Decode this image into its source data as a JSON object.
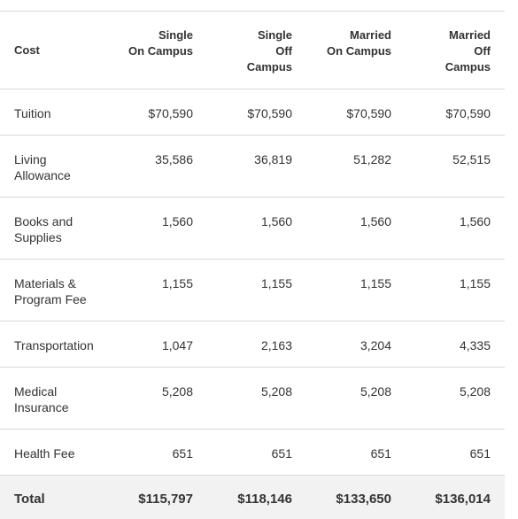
{
  "table": {
    "header": [
      "Cost",
      "Single\nOn Campus",
      "Single\nOff\nCampus",
      "Married\nOn Campus",
      "Married\nOff\nCampus"
    ],
    "rows": [
      [
        "Tuition",
        "$70,590",
        "$70,590",
        "$70,590",
        "$70,590"
      ],
      [
        "Living\nAllowance",
        "35,586",
        "36,819",
        "51,282",
        "52,515"
      ],
      [
        "Books and\nSupplies",
        "1,560",
        "1,560",
        "1,560",
        "1,560"
      ],
      [
        "Materials &\nProgram Fee",
        "1,155",
        "1,155",
        "1,155",
        "1,155"
      ],
      [
        "Transportation",
        "1,047",
        "2,163",
        "3,204",
        "4,335"
      ],
      [
        "Medical\nInsurance",
        "5,208",
        "5,208",
        "5,208",
        "5,208"
      ],
      [
        "Health Fee",
        "651",
        "651",
        "651",
        "651"
      ]
    ],
    "total": [
      "Total",
      "$115,797",
      "$118,146",
      "$133,650",
      "$136,014"
    ]
  }
}
